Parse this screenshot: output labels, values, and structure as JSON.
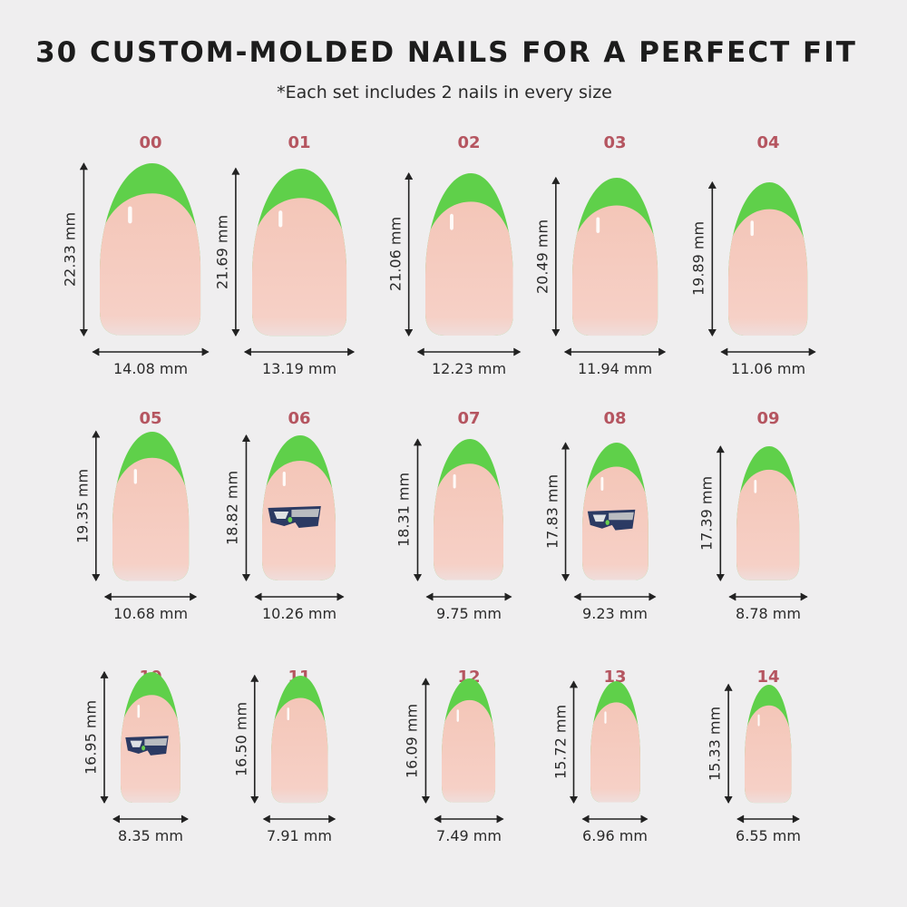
{
  "title": "30 CUSTOM-MOLDED NAILS FOR A PERFECT FIT",
  "subtitle": "*Each set includes 2 nails in every size",
  "colors": {
    "tip": "#5fd04a",
    "body": "#f3c9bd",
    "label": "#b55560",
    "background": "#efeeef"
  },
  "nails": [
    {
      "size": "00",
      "length": "22.33 mm",
      "width": "14.08 mm",
      "logo": false
    },
    {
      "size": "01",
      "length": "21.69 mm",
      "width": "13.19 mm",
      "logo": false
    },
    {
      "size": "02",
      "length": "21.06 mm",
      "width": "12.23 mm",
      "logo": false
    },
    {
      "size": "03",
      "length": "20.49 mm",
      "width": "11.94 mm",
      "logo": false
    },
    {
      "size": "04",
      "length": "19.89 mm",
      "width": "11.06 mm",
      "logo": false
    },
    {
      "size": "05",
      "length": "19.35 mm",
      "width": "10.68 mm",
      "logo": false
    },
    {
      "size": "06",
      "length": "18.82 mm",
      "width": "10.26 mm",
      "logo": true
    },
    {
      "size": "07",
      "length": "18.31 mm",
      "width": "9.75 mm",
      "logo": false
    },
    {
      "size": "08",
      "length": "17.83 mm",
      "width": "9.23 mm",
      "logo": true
    },
    {
      "size": "09",
      "length": "17.39 mm",
      "width": "8.78 mm",
      "logo": false
    },
    {
      "size": "10",
      "length": "16.95 mm",
      "width": "8.35 mm",
      "logo": true
    },
    {
      "size": "11",
      "length": "16.50 mm",
      "width": "7.91 mm",
      "logo": false
    },
    {
      "size": "12",
      "length": "16.09 mm",
      "width": "7.49 mm",
      "logo": false
    },
    {
      "size": "13",
      "length": "15.72 mm",
      "width": "6.96 mm",
      "logo": false
    },
    {
      "size": "14",
      "length": "15.33 mm",
      "width": "6.55 mm",
      "logo": false
    }
  ]
}
